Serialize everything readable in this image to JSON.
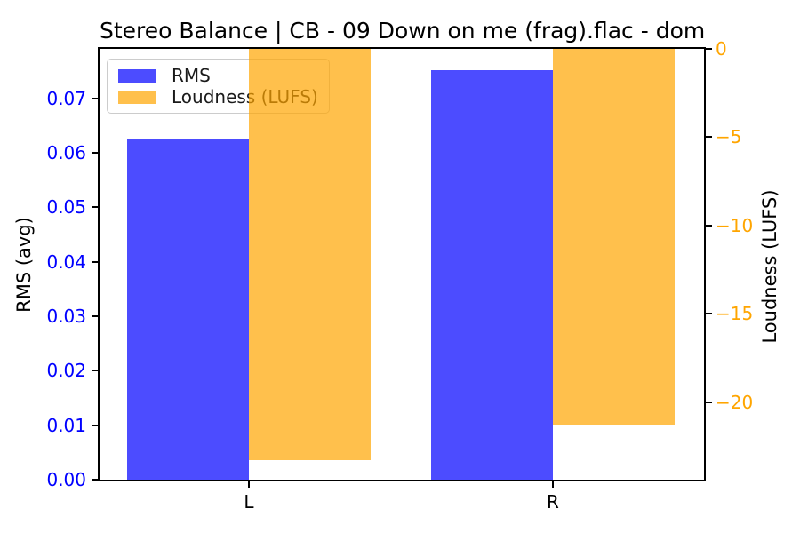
{
  "chart_data": {
    "type": "bar",
    "title": "Stereo Balance | CB - 09 Down on me (frag).flac - dom",
    "categories": [
      "L",
      "R"
    ],
    "series": [
      {
        "name": "RMS",
        "axis": "left",
        "color": "rgba(0,0,255,0.7)",
        "values": [
          0.0627,
          0.0752
        ]
      },
      {
        "name": "Loudness (LUFS)",
        "axis": "right",
        "color": "rgba(255,165,0,0.7)",
        "values": [
          -23.3,
          -21.3
        ]
      }
    ],
    "left_axis": {
      "label": "RMS (avg)",
      "color": "#0000ff",
      "range": [
        0,
        0.0791
      ],
      "ticks": [
        {
          "label": "0.00",
          "value": 0.0
        },
        {
          "label": "0.01",
          "value": 0.01
        },
        {
          "label": "0.02",
          "value": 0.02
        },
        {
          "label": "0.03",
          "value": 0.03
        },
        {
          "label": "0.04",
          "value": 0.04
        },
        {
          "label": "0.05",
          "value": 0.05
        },
        {
          "label": "0.06",
          "value": 0.06
        },
        {
          "label": "0.07",
          "value": 0.07
        }
      ]
    },
    "right_axis": {
      "label": "Loudness (LUFS)",
      "color": "#ffa500",
      "range": [
        -24.4,
        0
      ],
      "ticks": [
        {
          "label": "0",
          "value": 0
        },
        {
          "label": "−5",
          "value": -5
        },
        {
          "label": "−10",
          "value": -10
        },
        {
          "label": "−15",
          "value": -15
        },
        {
          "label": "−20",
          "value": -20
        }
      ]
    },
    "x_axis": {
      "ticks": [
        "L",
        "R"
      ],
      "color": "#000000"
    },
    "legend": {
      "position": "upper-left",
      "entries": [
        "RMS",
        "Loudness (LUFS)"
      ]
    },
    "grid": false,
    "background": "#ffffff"
  }
}
